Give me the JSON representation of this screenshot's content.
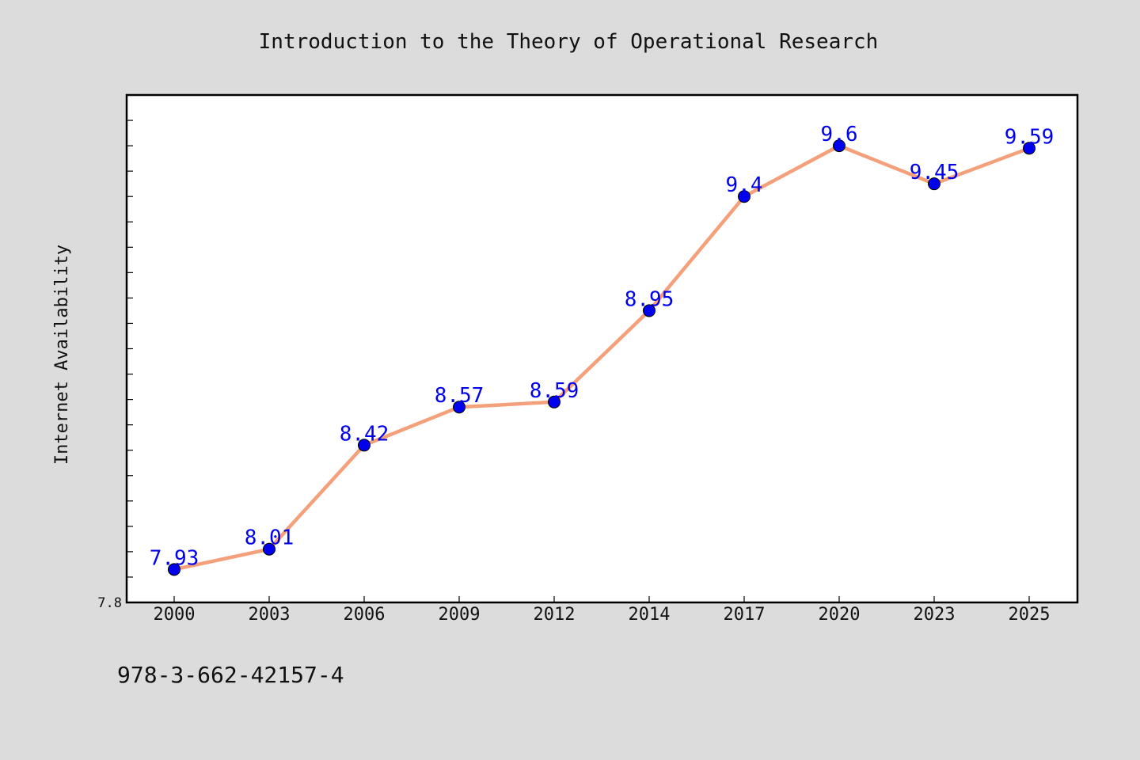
{
  "page": {
    "background": "#dcdcdc",
    "footer_text": "978-3-662-42157-4"
  },
  "chart_data": {
    "type": "line",
    "title": "Introduction to the Theory of Operational Research",
    "xlabel": "",
    "ylabel": "Internet Availability",
    "categories": [
      "2000",
      "2003",
      "2006",
      "2009",
      "2012",
      "2014",
      "2017",
      "2020",
      "2023",
      "2025"
    ],
    "series": [
      {
        "values": [
          7.93,
          8.01,
          8.42,
          8.57,
          8.59,
          8.95,
          9.4,
          9.6,
          9.45,
          9.59
        ],
        "labels": [
          "7.93",
          "8.01",
          "8.42",
          "8.57",
          "8.59",
          "8.95",
          "9.4",
          "9.6",
          "9.45",
          "9.59"
        ],
        "line_color": "#f4a07a",
        "marker_color": "#0000ee",
        "label_color": "#0000ee"
      }
    ],
    "ylim": [
      7.8,
      9.8
    ],
    "ytick_labels": [
      "7.8"
    ],
    "grid": false,
    "legend": "none",
    "plot_background": "#ffffff"
  }
}
